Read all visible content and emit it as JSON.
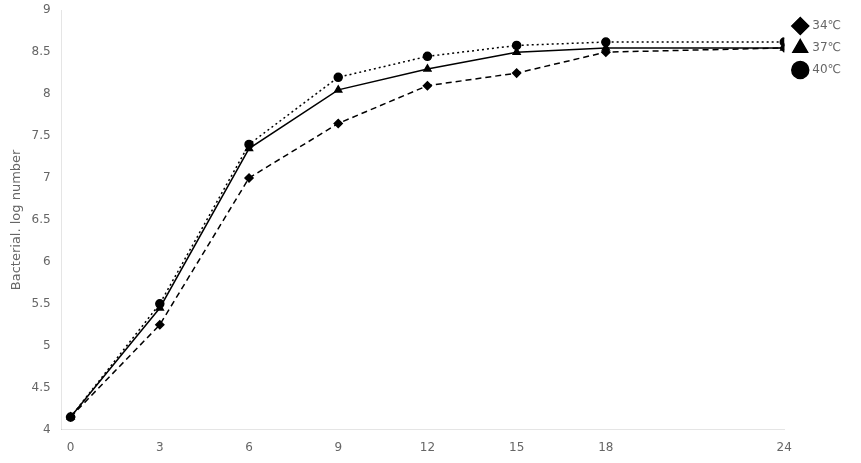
{
  "chart_data": {
    "type": "line",
    "x": [
      0,
      3,
      6,
      9,
      12,
      15,
      18,
      24
    ],
    "series": [
      {
        "name": "34℃",
        "color": "#000000",
        "marker": "diamond",
        "line_style": "dashed",
        "values": [
          4.15,
          5.25,
          7.0,
          7.65,
          8.1,
          8.25,
          8.5,
          8.55
        ]
      },
      {
        "name": "37℃",
        "color": "#000000",
        "marker": "triangle",
        "line_style": "solid",
        "values": [
          4.15,
          5.45,
          7.35,
          8.05,
          8.3,
          8.5,
          8.55,
          8.55
        ]
      },
      {
        "name": "40℃",
        "color": "#000000",
        "marker": "circle",
        "line_style": "dotted",
        "values": [
          4.15,
          5.5,
          7.4,
          8.2,
          8.45,
          8.58,
          8.62,
          8.62
        ]
      }
    ],
    "ylabel": "Bacterial. log number",
    "xlim": [
      -0.3,
      24
    ],
    "xticks": [
      0,
      3,
      6,
      9,
      12,
      15,
      18,
      24
    ],
    "ylim": [
      4.0,
      9.0
    ],
    "yticks": [
      4.0,
      4.5,
      5.0,
      5.5,
      6.0,
      6.5,
      7.0,
      7.5,
      8.0,
      8.5,
      9.0
    ],
    "grid": false,
    "legend": "right"
  }
}
